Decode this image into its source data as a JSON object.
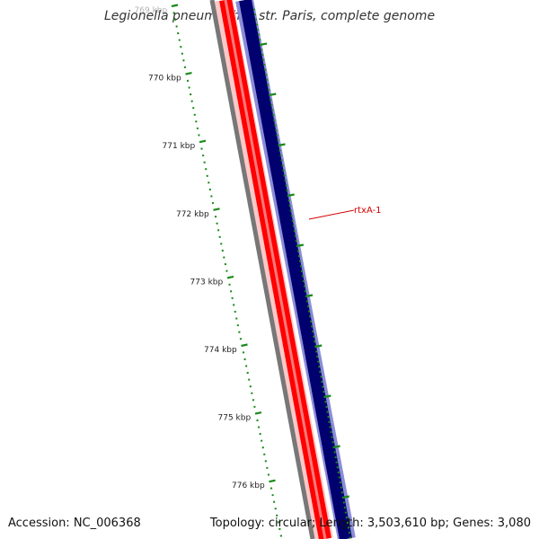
{
  "title": "Legionella pneumophila str. Paris, complete genome",
  "ticks": [
    {
      "label": "769 kbp"
    },
    {
      "label": "770 kbp"
    },
    {
      "label": "771 kbp"
    },
    {
      "label": "772 kbp"
    },
    {
      "label": "773 kbp"
    },
    {
      "label": "774 kbp"
    },
    {
      "label": "775 kbp"
    },
    {
      "label": "776 kbp"
    }
  ],
  "gene_label": "rtxA-1",
  "footer": {
    "accession": "Accession: NC_006368",
    "stats": "Topology: circular; Length: 3,503,610 bp; Genes: 3,080"
  },
  "colors": {
    "tick_green": "#1a8a1a",
    "strand_red": "#ff0000",
    "strand_navy": "#00006e",
    "backbone_gray": "#777777",
    "label_red": "#d40000"
  }
}
